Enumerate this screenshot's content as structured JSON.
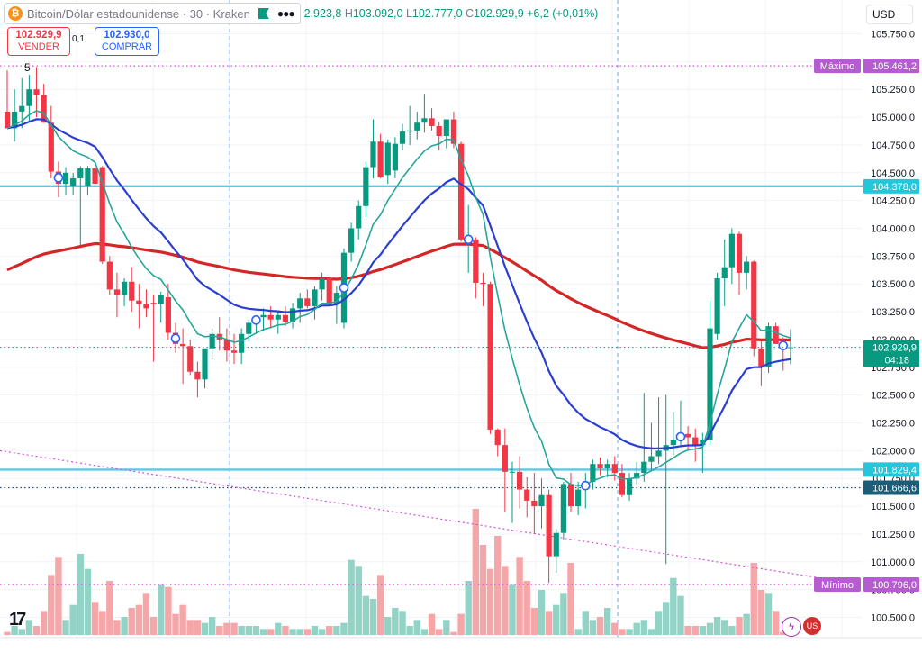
{
  "header": {
    "symbol": "Bitcoin/Dólar estadounidense · 30 · Kraken",
    "ohlc": [
      {
        "k": "",
        "v": "2.923,8"
      },
      {
        "k": "H",
        "v": "103.092,0"
      },
      {
        "k": "L",
        "v": "102.777,0"
      },
      {
        "k": "C",
        "v": "102.929,9"
      },
      {
        "k": "",
        "v": "+6,2 (+0,01%)"
      }
    ]
  },
  "trade": {
    "sell_price": "102.929,9",
    "sell_label": "VENDER",
    "spread": "0,1",
    "buy_price": "102.930,0",
    "buy_label": "COMPRAR"
  },
  "currency": "USD",
  "indicator_count": "5",
  "colors": {
    "up": "#089981",
    "down": "#f23645",
    "vol_up": "#92d3c6",
    "vol_down": "#f5a6a9",
    "ema_short": "#26a69a",
    "ema_mid": "#2a3ecf",
    "ema_long": "#d32626",
    "hline": "#5ec8e4",
    "magenta": "#d54fe0",
    "dotted": "#1e4f6e"
  },
  "chart_data": {
    "type": "candlestick",
    "timeframe": "30",
    "yaxis_ticks": [
      "105.750,0",
      "105.500,0",
      "105.250,0",
      "105.000,0",
      "104.750,0",
      "104.500,0",
      "104.250,0",
      "104.000,0",
      "103.750,0",
      "103.500,0",
      "103.250,0",
      "103.000,0",
      "102.750,0",
      "102.500,0",
      "102.250,0",
      "102.000,0",
      "101.750,0",
      "101.500,0",
      "101.250,0",
      "101.000,0",
      "100.750,0",
      "100.500,0"
    ],
    "ylim": [
      100400,
      105800
    ],
    "candles": [
      {
        "o": 105050,
        "h": 105420,
        "l": 104900,
        "c": 104900
      },
      {
        "o": 104900,
        "h": 105250,
        "l": 104780,
        "c": 105050
      },
      {
        "o": 105050,
        "h": 105350,
        "l": 104900,
        "c": 105100
      },
      {
        "o": 105100,
        "h": 105380,
        "l": 104950,
        "c": 105250
      },
      {
        "o": 105250,
        "h": 105450,
        "l": 105000,
        "c": 105200
      },
      {
        "o": 105200,
        "h": 105300,
        "l": 104950,
        "c": 104950
      },
      {
        "o": 104950,
        "h": 105100,
        "l": 104450,
        "c": 104510
      },
      {
        "o": 104510,
        "h": 104600,
        "l": 104280,
        "c": 104400
      },
      {
        "o": 104400,
        "h": 104550,
        "l": 104300,
        "c": 104500
      },
      {
        "o": 104380,
        "h": 104500,
        "l": 104300,
        "c": 104450
      },
      {
        "o": 104450,
        "h": 104560,
        "l": 103850,
        "c": 104540
      },
      {
        "o": 104380,
        "h": 104560,
        "l": 104300,
        "c": 104540
      },
      {
        "o": 104540,
        "h": 104600,
        "l": 104400,
        "c": 104400
      },
      {
        "o": 104550,
        "h": 104560,
        "l": 103680,
        "c": 103700
      },
      {
        "o": 103700,
        "h": 103750,
        "l": 103400,
        "c": 103450
      },
      {
        "o": 103450,
        "h": 103600,
        "l": 103200,
        "c": 103400
      },
      {
        "o": 103400,
        "h": 103550,
        "l": 103300,
        "c": 103520
      },
      {
        "o": 103520,
        "h": 103650,
        "l": 103250,
        "c": 103350
      },
      {
        "o": 103350,
        "h": 103500,
        "l": 103100,
        "c": 103320
      },
      {
        "o": 103320,
        "h": 103450,
        "l": 103200,
        "c": 103280
      },
      {
        "o": 103330,
        "h": 103400,
        "l": 102800,
        "c": 103320
      },
      {
        "o": 103320,
        "h": 103430,
        "l": 103150,
        "c": 103400
      },
      {
        "o": 103380,
        "h": 103500,
        "l": 103000,
        "c": 103060
      },
      {
        "o": 103060,
        "h": 103150,
        "l": 102880,
        "c": 102960
      },
      {
        "o": 102960,
        "h": 103100,
        "l": 102600,
        "c": 102940
      },
      {
        "o": 102940,
        "h": 103000,
        "l": 102680,
        "c": 102710
      },
      {
        "o": 102710,
        "h": 102800,
        "l": 102480,
        "c": 102640
      },
      {
        "o": 102640,
        "h": 102900,
        "l": 102560,
        "c": 102920
      },
      {
        "o": 102920,
        "h": 103100,
        "l": 102820,
        "c": 103050
      },
      {
        "o": 103050,
        "h": 103200,
        "l": 102900,
        "c": 103000
      },
      {
        "o": 103000,
        "h": 103100,
        "l": 102800,
        "c": 102900
      },
      {
        "o": 102900,
        "h": 103050,
        "l": 102780,
        "c": 102880
      },
      {
        "o": 102880,
        "h": 103100,
        "l": 102780,
        "c": 103050
      },
      {
        "o": 103050,
        "h": 103180,
        "l": 102980,
        "c": 103150
      },
      {
        "o": 103150,
        "h": 103220,
        "l": 103060,
        "c": 103200
      },
      {
        "o": 103200,
        "h": 103280,
        "l": 103080,
        "c": 103220
      },
      {
        "o": 103220,
        "h": 103300,
        "l": 103100,
        "c": 103180
      },
      {
        "o": 103180,
        "h": 103260,
        "l": 103050,
        "c": 103220
      },
      {
        "o": 103220,
        "h": 103300,
        "l": 103120,
        "c": 103160
      },
      {
        "o": 103160,
        "h": 103330,
        "l": 103100,
        "c": 103280
      },
      {
        "o": 103280,
        "h": 103420,
        "l": 103150,
        "c": 103370
      },
      {
        "o": 103370,
        "h": 103450,
        "l": 103280,
        "c": 103300
      },
      {
        "o": 103300,
        "h": 103480,
        "l": 103180,
        "c": 103450
      },
      {
        "o": 103450,
        "h": 103600,
        "l": 103350,
        "c": 103550
      },
      {
        "o": 103550,
        "h": 103560,
        "l": 103300,
        "c": 103320
      },
      {
        "o": 103320,
        "h": 103480,
        "l": 103140,
        "c": 103420
      },
      {
        "o": 103150,
        "h": 103820,
        "l": 103100,
        "c": 103780
      },
      {
        "o": 103780,
        "h": 104050,
        "l": 103700,
        "c": 104000
      },
      {
        "o": 104000,
        "h": 104250,
        "l": 103900,
        "c": 104200
      },
      {
        "o": 104200,
        "h": 104600,
        "l": 104100,
        "c": 104550
      },
      {
        "o": 104550,
        "h": 104980,
        "l": 104450,
        "c": 104780
      },
      {
        "o": 104780,
        "h": 104850,
        "l": 104450,
        "c": 104460
      },
      {
        "o": 104480,
        "h": 104800,
        "l": 104400,
        "c": 104770
      },
      {
        "o": 104520,
        "h": 104820,
        "l": 104450,
        "c": 104760
      },
      {
        "o": 104760,
        "h": 104940,
        "l": 104700,
        "c": 104870
      },
      {
        "o": 104870,
        "h": 105100,
        "l": 104750,
        "c": 104880
      },
      {
        "o": 104880,
        "h": 105050,
        "l": 104800,
        "c": 104950
      },
      {
        "o": 104950,
        "h": 105210,
        "l": 104860,
        "c": 104990
      },
      {
        "o": 104990,
        "h": 105080,
        "l": 104880,
        "c": 104920
      },
      {
        "o": 104920,
        "h": 104960,
        "l": 104700,
        "c": 104830
      },
      {
        "o": 104830,
        "h": 104980,
        "l": 104720,
        "c": 104980
      },
      {
        "o": 104980,
        "h": 105050,
        "l": 104720,
        "c": 104760
      },
      {
        "o": 104760,
        "h": 104780,
        "l": 103880,
        "c": 103900
      },
      {
        "o": 103900,
        "h": 104210,
        "l": 103600,
        "c": 103900
      },
      {
        "o": 103900,
        "h": 103920,
        "l": 103370,
        "c": 103510
      },
      {
        "o": 103510,
        "h": 103600,
        "l": 103300,
        "c": 103500
      },
      {
        "o": 103500,
        "h": 103520,
        "l": 102150,
        "c": 102190
      },
      {
        "o": 102190,
        "h": 102200,
        "l": 101950,
        "c": 102050
      },
      {
        "o": 102050,
        "h": 102200,
        "l": 101450,
        "c": 101810
      },
      {
        "o": 101810,
        "h": 101900,
        "l": 101350,
        "c": 101810
      },
      {
        "o": 101810,
        "h": 101950,
        "l": 101480,
        "c": 101650
      },
      {
        "o": 101650,
        "h": 101760,
        "l": 101400,
        "c": 101550
      },
      {
        "o": 101550,
        "h": 101800,
        "l": 101250,
        "c": 101500
      },
      {
        "o": 101500,
        "h": 101750,
        "l": 101300,
        "c": 101600
      },
      {
        "o": 101600,
        "h": 101650,
        "l": 100810,
        "c": 101050
      },
      {
        "o": 101050,
        "h": 101300,
        "l": 100900,
        "c": 101260
      },
      {
        "o": 101260,
        "h": 101720,
        "l": 101200,
        "c": 101700
      },
      {
        "o": 101700,
        "h": 101800,
        "l": 101450,
        "c": 101500
      },
      {
        "o": 101500,
        "h": 101720,
        "l": 101420,
        "c": 101650
      },
      {
        "o": 101650,
        "h": 101800,
        "l": 101480,
        "c": 101720
      },
      {
        "o": 101720,
        "h": 101920,
        "l": 101650,
        "c": 101880
      },
      {
        "o": 101880,
        "h": 101940,
        "l": 101780,
        "c": 101840
      },
      {
        "o": 101840,
        "h": 101920,
        "l": 101760,
        "c": 101880
      },
      {
        "o": 101880,
        "h": 101950,
        "l": 101730,
        "c": 101800
      },
      {
        "o": 101800,
        "h": 101880,
        "l": 101580,
        "c": 101600
      },
      {
        "o": 101600,
        "h": 101800,
        "l": 101550,
        "c": 101750
      },
      {
        "o": 101750,
        "h": 101900,
        "l": 101700,
        "c": 101800
      },
      {
        "o": 101800,
        "h": 102520,
        "l": 101720,
        "c": 101900
      },
      {
        "o": 101900,
        "h": 102250,
        "l": 101820,
        "c": 101950
      },
      {
        "o": 101950,
        "h": 102480,
        "l": 101880,
        "c": 102000
      },
      {
        "o": 102000,
        "h": 102500,
        "l": 100980,
        "c": 102050
      },
      {
        "o": 102050,
        "h": 102350,
        "l": 101960,
        "c": 102100
      },
      {
        "o": 102100,
        "h": 102450,
        "l": 102050,
        "c": 102150
      },
      {
        "o": 102150,
        "h": 102220,
        "l": 102000,
        "c": 102120
      },
      {
        "o": 102120,
        "h": 102200,
        "l": 101900,
        "c": 102050
      },
      {
        "o": 102050,
        "h": 102160,
        "l": 101800,
        "c": 102100
      },
      {
        "o": 102100,
        "h": 103350,
        "l": 102050,
        "c": 103100
      },
      {
        "o": 103050,
        "h": 103600,
        "l": 103000,
        "c": 103550
      },
      {
        "o": 103550,
        "h": 103900,
        "l": 103300,
        "c": 103650
      },
      {
        "o": 103650,
        "h": 104000,
        "l": 103500,
        "c": 103950
      },
      {
        "o": 103950,
        "h": 103970,
        "l": 103400,
        "c": 103600
      },
      {
        "o": 103600,
        "h": 103750,
        "l": 103450,
        "c": 103700
      },
      {
        "o": 103700,
        "h": 103710,
        "l": 102850,
        "c": 102920
      },
      {
        "o": 102920,
        "h": 103000,
        "l": 102580,
        "c": 102750
      },
      {
        "o": 102750,
        "h": 103150,
        "l": 102700,
        "c": 103120
      },
      {
        "o": 103120,
        "h": 103150,
        "l": 102960,
        "c": 102960
      },
      {
        "o": 102960,
        "h": 103020,
        "l": 102720,
        "c": 102930
      },
      {
        "o": 102924,
        "h": 103092,
        "l": 102777,
        "c": 102930
      }
    ],
    "volumes": [
      1,
      3,
      2,
      5,
      3,
      8,
      20,
      26,
      5,
      10,
      27,
      22,
      11,
      8,
      18,
      5,
      6,
      9,
      10,
      14,
      6,
      17,
      16,
      7,
      10,
      5,
      5,
      4,
      6,
      3,
      4,
      4,
      3,
      3,
      3,
      2,
      2,
      4,
      3,
      2,
      2,
      2,
      3,
      2,
      3,
      3,
      4,
      25,
      23,
      13,
      12,
      20,
      6,
      9,
      8,
      3,
      5,
      2,
      7,
      2,
      5,
      1,
      7,
      18,
      42,
      30,
      22,
      33,
      23,
      17,
      26,
      18,
      9,
      15,
      8,
      10,
      14,
      24,
      2,
      8,
      5,
      6,
      9,
      4,
      2,
      2,
      4,
      5,
      2,
      8,
      11,
      19,
      13,
      3,
      3,
      3,
      4,
      6,
      5,
      3,
      6,
      7,
      24,
      15,
      14,
      8,
      1,
      4
    ],
    "levels": [
      {
        "name": "",
        "price": 104378,
        "label": "104.378,0",
        "style": "solid"
      },
      {
        "name": "",
        "price": 101829.4,
        "label": "101.829,4",
        "style": "solid"
      },
      {
        "name": "",
        "price": 101666.6,
        "label": "101.666,6",
        "style": "dotted"
      },
      {
        "name": "Máximo",
        "price": 105461.2,
        "label": "105.461,2",
        "style": "magenta-dotted"
      },
      {
        "name": "Mínimo",
        "price": 100796,
        "label": "100.796,0",
        "style": "magenta-dotted"
      }
    ],
    "trendline": {
      "from_price": 102000,
      "to_price": 100796
    },
    "last_price": {
      "label": "102.929,9",
      "countdown": "04:18",
      "price": 102929.9
    }
  }
}
